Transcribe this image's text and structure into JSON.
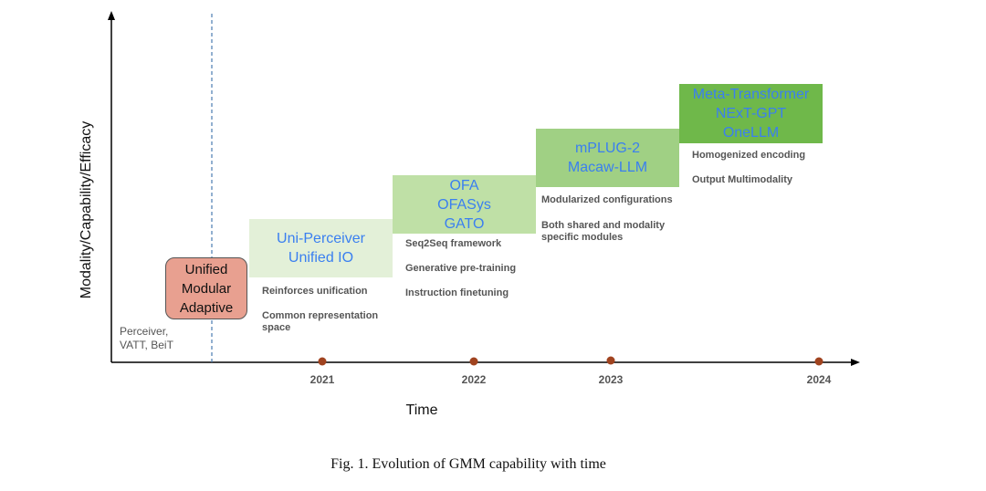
{
  "axis": {
    "y_label": "Modality/Capability/Efficacy",
    "x_label": "Time"
  },
  "caption": "Fig. 1.  Evolution of GMM capability with time",
  "pre_era": {
    "line1": "Perceiver,",
    "line2": "VATT, BeiT"
  },
  "paradigm": {
    "line1": "Unified",
    "line2": "Modular",
    "line3": "Adaptive"
  },
  "years": [
    "2021",
    "2022",
    "2023",
    "2024"
  ],
  "stages": [
    {
      "models": [
        "Uni-Perceiver",
        "Unified IO"
      ],
      "notes": [
        [
          "Reinforces unification"
        ],
        [
          "Common representation",
          "space"
        ]
      ]
    },
    {
      "models": [
        "OFA",
        "OFASys",
        "GATO"
      ],
      "notes": [
        [
          "Seq2Seq framework"
        ],
        [
          "Generative pre-training"
        ],
        [
          "Instruction finetuning"
        ]
      ]
    },
    {
      "models": [
        "mPLUG-2",
        "Macaw-LLM"
      ],
      "notes": [
        [
          "Modularized configurations"
        ],
        [
          "Both shared and modality",
          "specific modules"
        ]
      ]
    },
    {
      "models": [
        "Meta-Transformer",
        "NExT-GPT",
        "OneLLM"
      ],
      "notes": [
        [
          "Homogenized encoding"
        ],
        [
          "Output Multimodality"
        ]
      ]
    }
  ],
  "colors": {
    "paradigm_fill": "#e8a090",
    "stage_fills": [
      "#e3f0d8",
      "#bfe0a6",
      "#a0d084",
      "#6fb84a"
    ],
    "model_text": "#3a7ff0",
    "year_marker": "#a0431f",
    "divider": "#4a7bb0"
  }
}
